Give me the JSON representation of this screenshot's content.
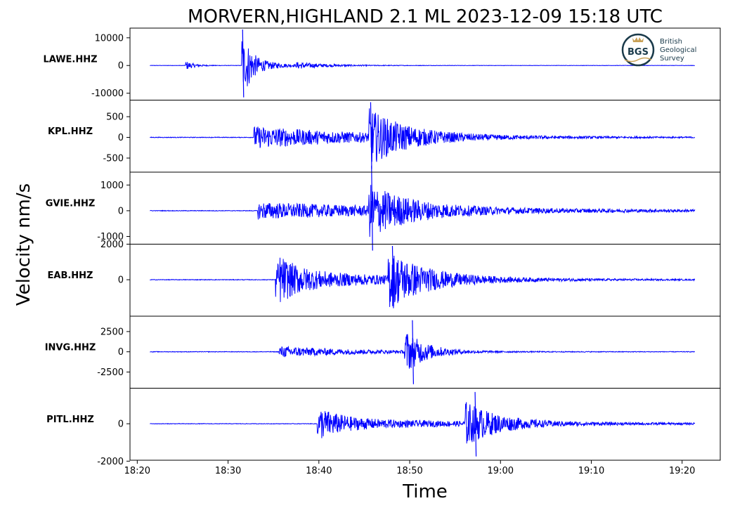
{
  "chart_data": {
    "type": "line",
    "title": "MORVERN,HIGHLAND 2.1 ML   2023-12-09 15:18 UTC",
    "xlabel": "Time",
    "ylabel": "Velocity nm/s",
    "x_ticks": [
      "18:20",
      "18:30",
      "18:40",
      "18:50",
      "19:00",
      "19:10",
      "19:20"
    ],
    "x_tick_minutes": [
      1100,
      1110,
      1120,
      1130,
      1140,
      1150,
      1160
    ],
    "xlim_minutes": [
      1099.2,
      1164.2
    ],
    "trace_start_minutes": 1101.4,
    "trace_end_minutes": 1161.4,
    "grid": false,
    "line_color": "#0000ff",
    "series": [
      {
        "name": "LAWE.HHZ",
        "ylim": [
          -12500,
          13500
        ],
        "yticks": [
          10000,
          0,
          -10000
        ],
        "ytick_labels": [
          "10000",
          "0",
          "-10000"
        ],
        "events": [
          {
            "t": 1105.3,
            "amp": 1700,
            "decay": 1.0
          },
          {
            "t": 1111.5,
            "amp": 12500,
            "decay": 0.7
          },
          {
            "t": 1112.0,
            "amp": 3500,
            "decay": 2.5
          },
          {
            "t": 1117.5,
            "amp": 900,
            "decay": 4.0
          }
        ],
        "noise": 60,
        "peak_minute": 1111.6,
        "peak_max": 13000,
        "peak_min": -11500
      },
      {
        "name": "KPL.HHZ",
        "ylim": [
          -840,
          900
        ],
        "yticks": [
          500,
          0,
          -500
        ],
        "ytick_labels": [
          "500",
          "0",
          "-500"
        ],
        "events": [
          {
            "t": 1112.8,
            "amp": 270,
            "decay": 14.0
          },
          {
            "t": 1125.5,
            "amp": 600,
            "decay": 4.0
          }
        ],
        "noise": 8,
        "peak_minute": 1125.7,
        "peak_max": 850,
        "peak_min": -760
      },
      {
        "name": "GVIE.HHZ",
        "ylim": [
          -1300,
          1500
        ],
        "yticks": [
          1000,
          0,
          -1000
        ],
        "ytick_labels": [
          "1000",
          "0",
          "-1000"
        ],
        "events": [
          {
            "t": 1113.2,
            "amp": 330,
            "decay": 22.0
          },
          {
            "t": 1125.5,
            "amp": 900,
            "decay": 4.5
          }
        ],
        "noise": 12,
        "peak_minute": 1125.8,
        "peak_max": 1750,
        "peak_min": -1550
      },
      {
        "name": "EAB.HHZ",
        "ylim": [
          -2050,
          2000
        ],
        "yticks": [
          2000,
          0
        ],
        "ytick_labels": [
          "2000",
          "0"
        ],
        "events": [
          {
            "t": 1115.2,
            "amp": 1100,
            "decay": 2.0
          },
          {
            "t": 1115.6,
            "amp": 550,
            "decay": 14.0
          },
          {
            "t": 1127.6,
            "amp": 1500,
            "decay": 4.0
          }
        ],
        "noise": 18,
        "peak_minute": 1128.1,
        "peak_max": 1900,
        "peak_min": -1600
      },
      {
        "name": "INVG.HHZ",
        "ylim": [
          -4500,
          4400
        ],
        "yticks": [
          2500,
          0,
          -2500
        ],
        "ytick_labels": [
          "2500",
          "0",
          "-2500"
        ],
        "events": [
          {
            "t": 1115.6,
            "amp": 700,
            "decay": 9.0
          },
          {
            "t": 1129.4,
            "amp": 2700,
            "decay": 2.3
          }
        ],
        "noise": 35,
        "peak_minute": 1130.3,
        "peak_max": 3900,
        "peak_min": -4000
      },
      {
        "name": "PITL.HHZ",
        "ylim": [
          -1950,
          1900
        ],
        "yticks": [
          0,
          -2000
        ],
        "ytick_labels": [
          "0",
          "-2000"
        ],
        "events": [
          {
            "t": 1119.8,
            "amp": 700,
            "decay": 2.5
          },
          {
            "t": 1120.2,
            "amp": 260,
            "decay": 22.0
          },
          {
            "t": 1136.0,
            "amp": 1150,
            "decay": 3.5
          }
        ],
        "noise": 14,
        "peak_minute": 1137.2,
        "peak_max": 1700,
        "peak_min": -1750
      }
    ]
  },
  "logo": {
    "mark": "BGS",
    "line1": "British",
    "line2": "Geological",
    "line3": "Survey",
    "icon": "crown-icon",
    "ring_color": "#1a3a4a",
    "accent_color": "#c8a055"
  }
}
